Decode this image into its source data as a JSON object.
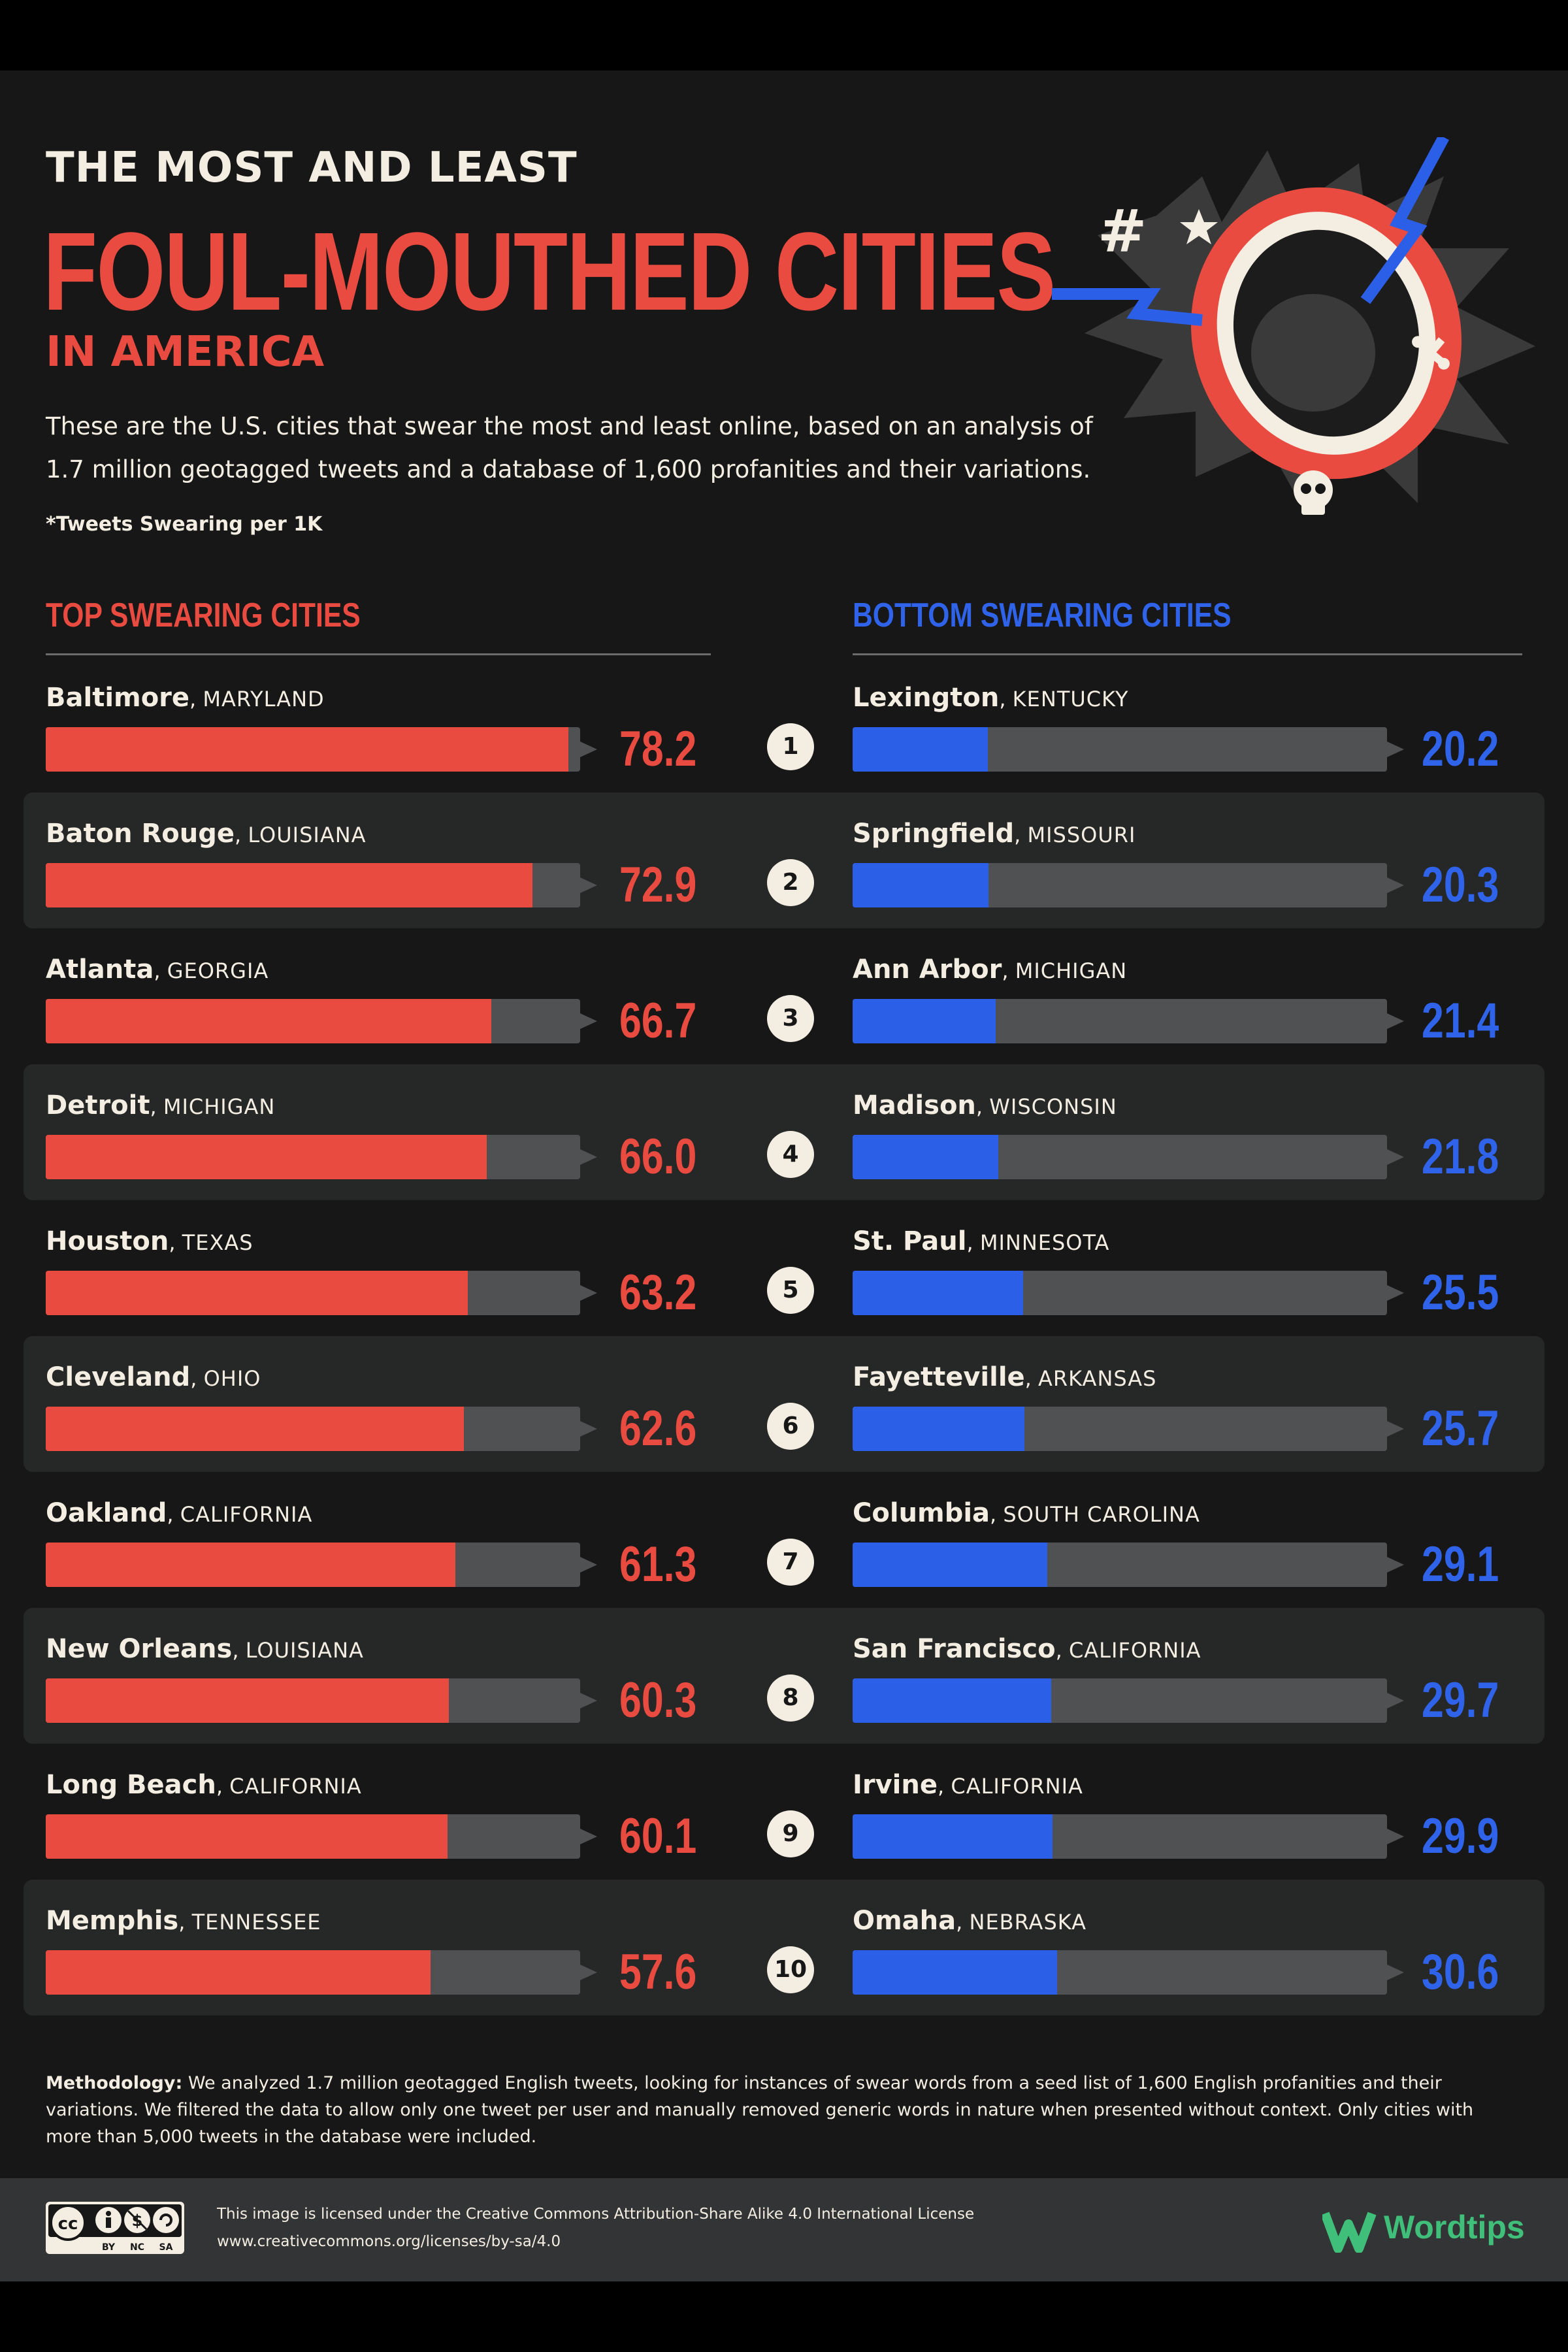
{
  "header": {
    "line1": "THE MOST AND LEAST",
    "line2": "FOUL-MOUTHED CITIES",
    "line3": "IN AMERICA",
    "intro": "These are the U.S. cities that swear the most and least online, based on an analysis of 1.7 million geotagged tweets and a database of 1,600 profanities and their variations.",
    "note": "*Tweets Swearing per 1K"
  },
  "colors": {
    "top": "#ea4b40",
    "bottom": "#2b5fe8",
    "track": "#505153",
    "background": "#171717"
  },
  "chart_data": [
    {
      "type": "bar",
      "title": "TOP SWEARING CITIES",
      "orientation": "horizontal",
      "xlim": [
        0,
        80
      ],
      "categories": [
        "Baltimore, MARYLAND",
        "Baton Rouge, LOUISIANA",
        "Atlanta, GEORGIA",
        "Detroit, MICHIGAN",
        "Houston, TEXAS",
        "Cleveland, OHIO",
        "Oakland, CALIFORNIA",
        "New Orleans, LOUISIANA",
        "Long Beach, CALIFORNIA",
        "Memphis, TENNESSEE"
      ],
      "values": [
        78.2,
        72.9,
        66.7,
        66.0,
        63.2,
        62.6,
        61.3,
        60.3,
        60.1,
        57.6
      ]
    },
    {
      "type": "bar",
      "title": "BOTTOM SWEARING CITIES",
      "orientation": "horizontal",
      "xlim": [
        0,
        80
      ],
      "categories": [
        "Lexington, KENTUCKY",
        "Springfield, MISSOURI",
        "Ann Arbor, MICHIGAN",
        "Madison, WISCONSIN",
        "St. Paul, MINNESOTA",
        "Fayetteville, ARKANSAS",
        "Columbia, SOUTH CAROLINA",
        "San Francisco, CALIFORNIA",
        "Irvine, CALIFORNIA",
        "Omaha, NEBRASKA"
      ],
      "values": [
        20.2,
        20.3,
        21.4,
        21.8,
        25.5,
        25.7,
        29.1,
        29.7,
        29.9,
        30.6
      ]
    }
  ],
  "top": {
    "title": "TOP SWEARING CITIES",
    "rows": [
      {
        "city": "Baltimore",
        "state": "MARYLAND",
        "value": "78.2"
      },
      {
        "city": "Baton Rouge",
        "state": "LOUISIANA",
        "value": "72.9"
      },
      {
        "city": "Atlanta",
        "state": "GEORGIA",
        "value": "66.7"
      },
      {
        "city": "Detroit",
        "state": "MICHIGAN",
        "value": "66.0"
      },
      {
        "city": "Houston",
        "state": "TEXAS",
        "value": "63.2"
      },
      {
        "city": "Cleveland",
        "state": "OHIO",
        "value": "62.6"
      },
      {
        "city": "Oakland",
        "state": "CALIFORNIA",
        "value": "61.3"
      },
      {
        "city": "New Orleans",
        "state": "LOUISIANA",
        "value": "60.3"
      },
      {
        "city": "Long Beach",
        "state": "CALIFORNIA",
        "value": "60.1"
      },
      {
        "city": "Memphis",
        "state": "TENNESSEE",
        "value": "57.6"
      }
    ]
  },
  "bottom": {
    "title": "BOTTOM SWEARING CITIES",
    "rows": [
      {
        "city": "Lexington",
        "state": "KENTUCKY",
        "value": "20.2"
      },
      {
        "city": "Springfield",
        "state": "MISSOURI",
        "value": "20.3"
      },
      {
        "city": "Ann Arbor",
        "state": "MICHIGAN",
        "value": "21.4"
      },
      {
        "city": "Madison",
        "state": "WISCONSIN",
        "value": "21.8"
      },
      {
        "city": "St. Paul",
        "state": "MINNESOTA",
        "value": "25.5"
      },
      {
        "city": "Fayetteville",
        "state": "ARKANSAS",
        "value": "25.7"
      },
      {
        "city": "Columbia",
        "state": "SOUTH CAROLINA",
        "value": "29.1"
      },
      {
        "city": "San Francisco",
        "state": "CALIFORNIA",
        "value": "29.7"
      },
      {
        "city": "Irvine",
        "state": "CALIFORNIA",
        "value": "29.9"
      },
      {
        "city": "Omaha",
        "state": "NEBRASKA",
        "value": "30.6"
      }
    ]
  },
  "ranks": [
    "1",
    "2",
    "3",
    "4",
    "5",
    "6",
    "7",
    "8",
    "9",
    "10"
  ],
  "methodology": {
    "label": "Methodology:",
    "text": " We analyzed 1.7 million geotagged English tweets, looking for instances of swear words from a seed list of 1,600 English profanities and their variations. We filtered the data to allow only one tweet per user and manually removed generic words in nature when presented without context. Only cities with more than 5,000 tweets in the database were included."
  },
  "footer": {
    "license_line1": "This image is licensed under the Creative Commons Attribution-Share Alike 4.0 International License",
    "license_line2": "www.creativecommons.org/licenses/by-sa/4.0",
    "cc_badges": [
      "cc",
      "BY",
      "NC",
      "SA"
    ],
    "brand": "Wordtips"
  }
}
